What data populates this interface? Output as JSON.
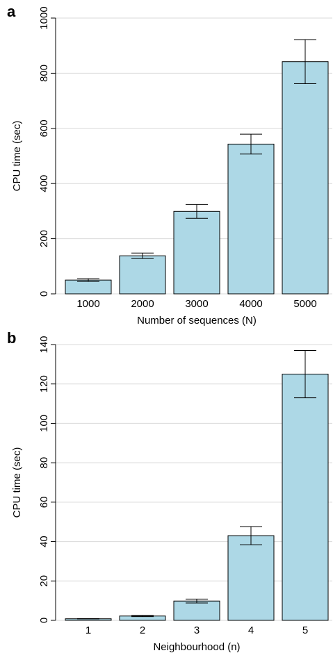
{
  "chart_data": [
    {
      "type": "bar",
      "panel_label": "a",
      "ylabel": "CPU time (sec)",
      "xlabel": "Number of sequences (N)",
      "categories": [
        "1000",
        "2000",
        "3000",
        "4000",
        "5000"
      ],
      "values": [
        50,
        138,
        299,
        543,
        842
      ],
      "errors": [
        5,
        10,
        25,
        36,
        80
      ],
      "color": "#add8e6",
      "ylim": [
        0,
        1000
      ],
      "yticks": [
        0,
        200,
        400,
        600,
        800,
        1000
      ],
      "grid": true
    },
    {
      "type": "bar",
      "panel_label": "b",
      "ylabel": "CPU time (sec)",
      "xlabel": "Neighbourhood (n)",
      "categories": [
        "1",
        "2",
        "3",
        "4",
        "5"
      ],
      "values": [
        0.8,
        2.2,
        9.8,
        43,
        125
      ],
      "errors": [
        0.1,
        0.3,
        1,
        4.6,
        12
      ],
      "color": "#add8e6",
      "ylim": [
        0,
        140
      ],
      "yticks": [
        0,
        20,
        40,
        60,
        80,
        100,
        120,
        140
      ],
      "grid": true
    }
  ]
}
